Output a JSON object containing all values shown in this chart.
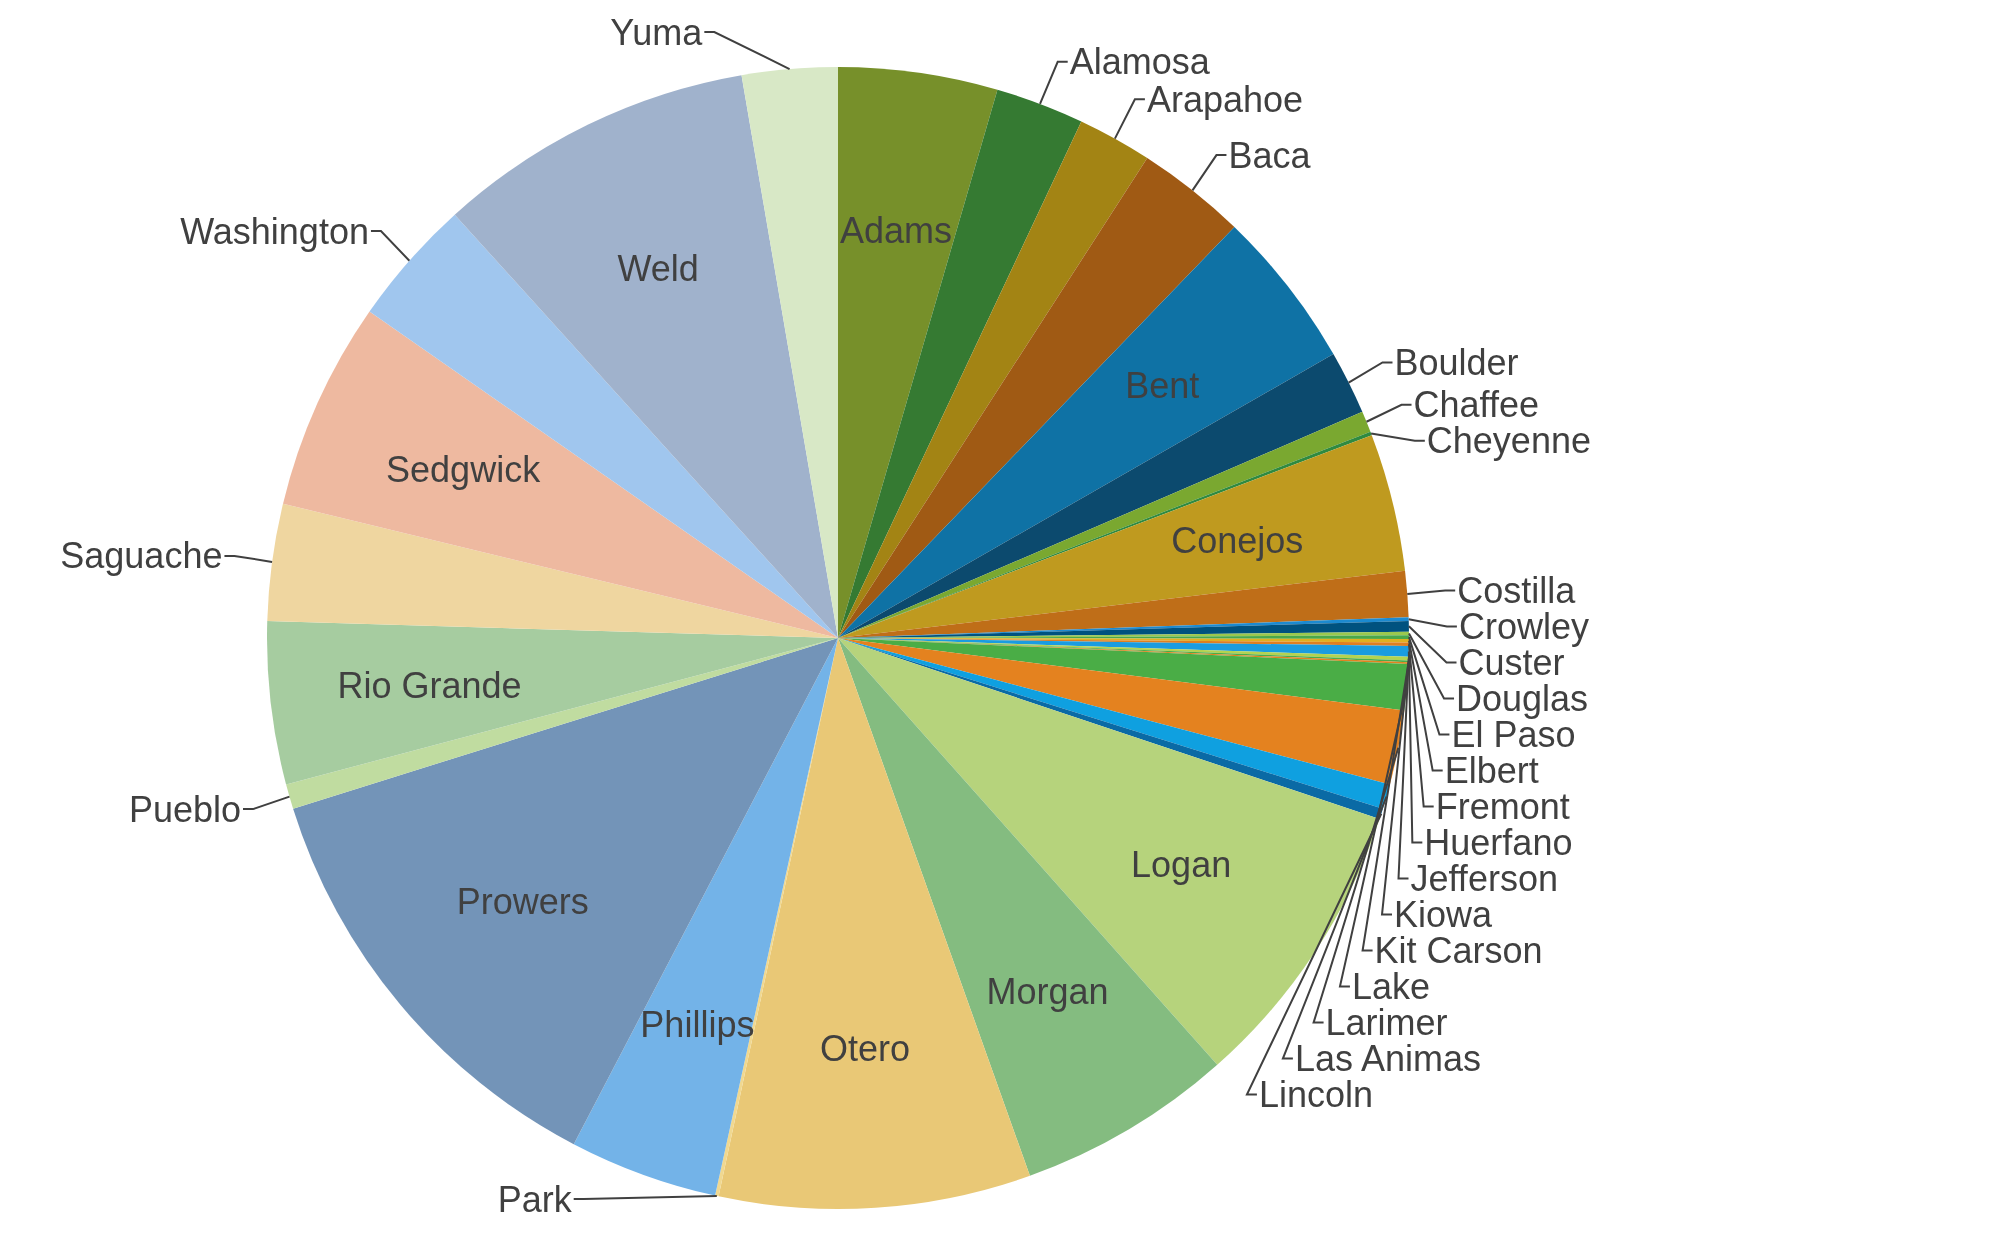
{
  "chart_data": {
    "type": "pie",
    "categories": [
      "Adams",
      "Alamosa",
      "Arapahoe",
      "Baca",
      "Bent",
      "Boulder",
      "Chaffee",
      "Cheyenne",
      "Conejos",
      "Costilla",
      "Crowley",
      "Custer",
      "Douglas",
      "El Paso",
      "Elbert",
      "Fremont",
      "Huerfano",
      "Jefferson",
      "Kiowa",
      "Kit Carson",
      "Lake",
      "Larimer",
      "Las Animas",
      "Lincoln",
      "Logan",
      "Morgan",
      "Otero",
      "Park",
      "Phillips",
      "Prowers",
      "Pueblo",
      "Rio Grande",
      "Saguache",
      "Sedgwick",
      "Washington",
      "Weld",
      "Yuma"
    ],
    "values": [
      4.5,
      2.5,
      2.1,
      3.1,
      4.5,
      1.8,
      0.6,
      0.1,
      3.9,
      1.3,
      0.1,
      0.3,
      0.1,
      0.1,
      0.1,
      0.1,
      0.3,
      0.1,
      0.05,
      0.05,
      1.3,
      2.1,
      0.7,
      0.3,
      8.3,
      6.1,
      8.8,
      0.1,
      4.2,
      12.5,
      0.7,
      4.6,
      3.3,
      5.9,
      3.6,
      9.0,
      2.7
    ],
    "colors": [
      "#77902a",
      "#357a32",
      "#a38414",
      "#a05a14",
      "#0f72a5",
      "#0c4a6e",
      "#7aa830",
      "#2f8a40",
      "#bf9a1f",
      "#bf6e18",
      "#1c8ad0",
      "#00527f",
      "#9bc84e",
      "#4aa84a",
      "#e0b020",
      "#e07f20",
      "#1a9ce0",
      "#b3d350",
      "#4aad4a",
      "#e2821f",
      "#4aad46",
      "#e4821f",
      "#0fa0e0",
      "#0a6aa5",
      "#b6d37c",
      "#84bc80",
      "#e9c876",
      "#f0d890",
      "#73b3e8",
      "#7394b8",
      "#c0dca0",
      "#a6cca0",
      "#efd6a0",
      "#eeb9a0",
      "#a0c6ee",
      "#a0b2cc",
      "#d8e8c6"
    ]
  }
}
